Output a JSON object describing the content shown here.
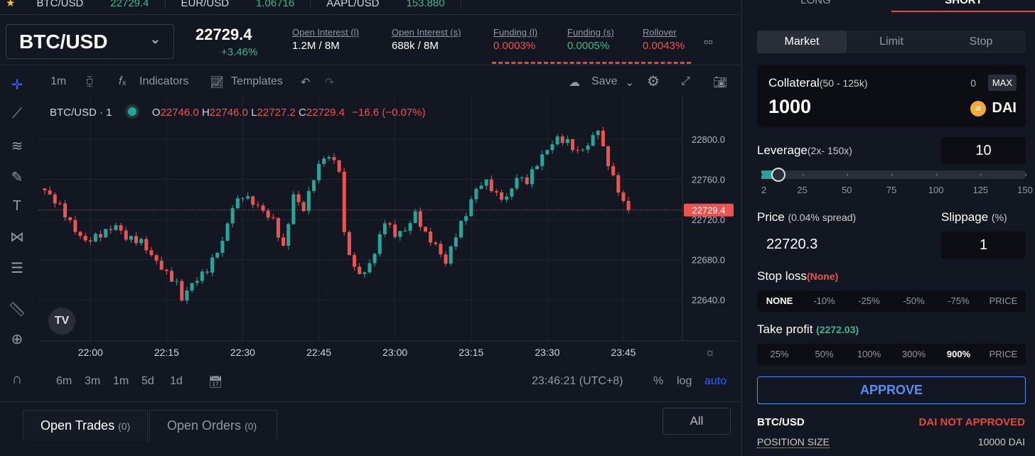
{
  "ticker": [
    {
      "pair": "BTC/USD",
      "price": "22729.4"
    },
    {
      "pair": "EUR/USD",
      "price": "1.06716"
    },
    {
      "pair": "AAPL/USD",
      "price": "153.880"
    }
  ],
  "header": {
    "pair": "BTC/USD",
    "price": "22729.4",
    "change": "+3.46%",
    "stats": [
      {
        "label": "Open Interest (l)",
        "value": "1.2M / 8M",
        "color": "#ffffff"
      },
      {
        "label": "Open Interest (s)",
        "value": "688k / 8M",
        "color": "#ffffff"
      },
      {
        "label": "Funding (l)",
        "value": "0.0003%",
        "color": "#f0524f"
      },
      {
        "label": "Funding (s)",
        "value": "0.0005%",
        "color": "#3fb68b"
      },
      {
        "label": "Rollover",
        "value": "0.0043%",
        "color": "#f0524f"
      }
    ]
  },
  "toolbar": {
    "interval": "1m",
    "indicators": "Indicators",
    "templates": "Templates",
    "save": "Save"
  },
  "legend": {
    "symbol": "BTC/USD · 1",
    "o_label": "O",
    "o": "22746.0",
    "h_label": "H",
    "h": "22746.0",
    "l_label": "L",
    "l": "22727.2",
    "c_label": "C",
    "c": "22729.4",
    "change": "−16.6 (−0.07%)"
  },
  "chart_data": {
    "type": "candlestick",
    "interval": "1m",
    "start_time": "21:51",
    "ylim": [
      22600,
      22830
    ],
    "yticks": [
      "22800.0",
      "22760.0",
      "22720.0",
      "22680.0",
      "22640.0"
    ],
    "ytick_values": [
      22800,
      22760,
      22720,
      22680,
      22640
    ],
    "xticks": [
      "22:00",
      "22:15",
      "22:30",
      "22:45",
      "23:00",
      "23:15",
      "23:30",
      "23:45"
    ],
    "xtick_minutes": [
      9,
      24,
      39,
      54,
      69,
      84,
      99,
      114
    ],
    "last_price": "22729.4",
    "last_value": 22729.4,
    "close_keypoints": [
      [
        0,
        22749
      ],
      [
        3,
        22733
      ],
      [
        6,
        22709
      ],
      [
        8,
        22698
      ],
      [
        11,
        22705
      ],
      [
        14,
        22714
      ],
      [
        16,
        22702
      ],
      [
        19,
        22698
      ],
      [
        21,
        22684
      ],
      [
        24,
        22666
      ],
      [
        26,
        22656
      ],
      [
        27,
        22641
      ],
      [
        29,
        22656
      ],
      [
        32,
        22670
      ],
      [
        35,
        22698
      ],
      [
        37,
        22733
      ],
      [
        39,
        22744
      ],
      [
        42,
        22733
      ],
      [
        45,
        22719
      ],
      [
        47,
        22691
      ],
      [
        49,
        22744
      ],
      [
        51,
        22730
      ],
      [
        53,
        22762
      ],
      [
        55,
        22783
      ],
      [
        57,
        22779
      ],
      [
        58,
        22769
      ],
      [
        59,
        22705
      ],
      [
        61,
        22670
      ],
      [
        63,
        22666
      ],
      [
        65,
        22687
      ],
      [
        67,
        22719
      ],
      [
        69,
        22705
      ],
      [
        71,
        22709
      ],
      [
        73,
        22726
      ],
      [
        75,
        22705
      ],
      [
        77,
        22694
      ],
      [
        79,
        22677
      ],
      [
        81,
        22705
      ],
      [
        83,
        22726
      ],
      [
        85,
        22751
      ],
      [
        87,
        22758
      ],
      [
        89,
        22744
      ],
      [
        91,
        22741
      ],
      [
        93,
        22762
      ],
      [
        95,
        22758
      ],
      [
        97,
        22776
      ],
      [
        99,
        22790
      ],
      [
        101,
        22801
      ],
      [
        103,
        22797
      ],
      [
        105,
        22787
      ],
      [
        107,
        22794
      ],
      [
        109,
        22811
      ],
      [
        110,
        22790
      ],
      [
        111,
        22776
      ],
      [
        113,
        22748
      ],
      [
        115,
        22729.4
      ]
    ]
  },
  "bottombar": {
    "ranges": [
      "6m",
      "3m",
      "1m",
      "5d",
      "1d"
    ],
    "clock": "23:46:21 (UTC+8)",
    "pct": "%",
    "log": "log",
    "auto": "auto"
  },
  "tabs": {
    "open_trades": "Open Trades",
    "open_trades_count": "(0)",
    "open_orders": "Open Orders",
    "open_orders_count": "(0)",
    "all": "All"
  },
  "panel": {
    "long": "LONG",
    "short": "SHORT",
    "order_types": [
      "Market",
      "Limit",
      "Stop"
    ],
    "collateral_label": "Collateral",
    "collateral_range": "(50 - 125k)",
    "balance": "0",
    "max": "MAX",
    "collateral": "1000",
    "token": "DAI",
    "leverage_label": "Leverage",
    "leverage_range": "(2x- 150x)",
    "leverage": "10",
    "leverage_value": 10,
    "slider_ticks": [
      "2",
      "25",
      "50",
      "75",
      "100",
      "125",
      "150"
    ],
    "price_label": "Price",
    "spread": "(0.04% spread)",
    "price": "22720.3",
    "slippage_label": "Slippage",
    "slippage_unit": "(%)",
    "slippage": "1",
    "stop_loss_label": "Stop loss",
    "stop_loss_value": "(None)",
    "stop_loss_options": [
      "NONE",
      "-10%",
      "-25%",
      "-50%",
      "-75%",
      "PRICE"
    ],
    "take_profit_label": "Take profit",
    "take_profit_value": "(2272.03)",
    "take_profit_options": [
      "25%",
      "50%",
      "100%",
      "300%",
      "900%",
      "PRICE"
    ],
    "approve": "APPROVE",
    "pair": "BTC/USD",
    "status": "DAI NOT APPROVED",
    "position_size_label": "POSITION SIZE",
    "position_size": "10000 DAI"
  },
  "colors": {
    "up": "#26a69a",
    "down": "#ef5350",
    "accent": "#2962ff",
    "approve": "#5b8def"
  }
}
